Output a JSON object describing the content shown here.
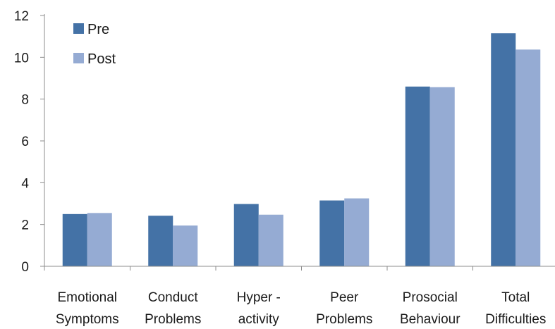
{
  "colors": {
    "pre": "#4472a6",
    "post": "#95abd3",
    "axis": "#8c8c8c",
    "text": "#1a1a1a"
  },
  "chart_data": {
    "type": "bar",
    "categories": [
      [
        "Emotional",
        "Symptoms"
      ],
      [
        "Conduct",
        "Problems"
      ],
      [
        "Hyper -",
        "activity"
      ],
      [
        "Peer",
        "Problems"
      ],
      [
        "Prosocial",
        "Behaviour"
      ],
      [
        "Total",
        "Difficulties"
      ]
    ],
    "series": [
      {
        "name": "Pre",
        "values": [
          2.5,
          2.42,
          2.98,
          3.15,
          8.6,
          11.15
        ]
      },
      {
        "name": "Post",
        "values": [
          2.55,
          1.95,
          2.47,
          3.25,
          8.57,
          10.37
        ]
      }
    ],
    "yticks": [
      "0",
      "2",
      "4",
      "6",
      "8",
      "10",
      "12"
    ],
    "ylim": [
      0,
      12
    ],
    "legend_position": "top-left, inside plot",
    "grid": false
  }
}
